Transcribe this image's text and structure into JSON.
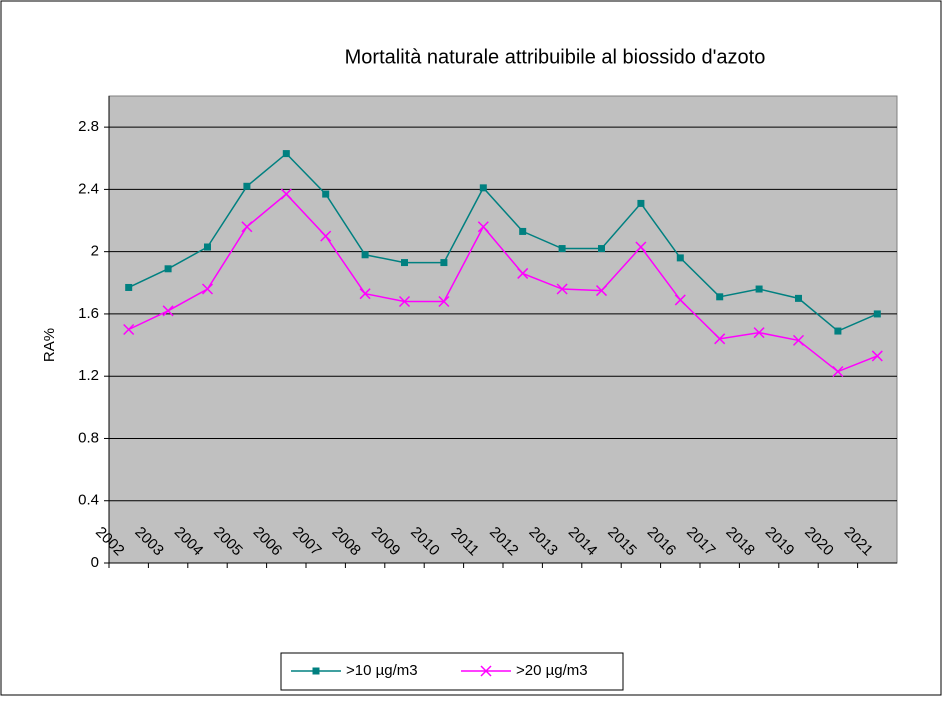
{
  "chart_data": {
    "type": "line",
    "title": "Mortalità naturale attribuibile al biossido d'azoto",
    "y_label": "RA%",
    "categories": [
      "2002",
      "2003",
      "2004",
      "2005",
      "2006",
      "2007",
      "2008",
      "2009",
      "2010",
      "2011",
      "2012",
      "2013",
      "2014",
      "2015",
      "2016",
      "2017",
      "2018",
      "2019",
      "2020",
      "2021"
    ],
    "series": [
      {
        "name": ">10 µg/m3",
        "color": "#008080",
        "marker": "square",
        "values": [
          1.77,
          1.89,
          2.03,
          2.42,
          2.63,
          2.37,
          1.98,
          1.93,
          1.93,
          2.41,
          2.13,
          2.02,
          2.02,
          2.31,
          1.96,
          1.71,
          1.76,
          1.7,
          1.49,
          1.6
        ]
      },
      {
        "name": ">20 µg/m3",
        "color": "#ff00ff",
        "marker": "x",
        "values": [
          1.5,
          1.62,
          1.76,
          2.16,
          2.37,
          2.1,
          1.73,
          1.68,
          1.68,
          2.16,
          1.86,
          1.76,
          1.75,
          2.03,
          1.69,
          1.44,
          1.48,
          1.43,
          1.23,
          1.33
        ]
      }
    ],
    "ylim": [
      0,
      3
    ],
    "yticks": [
      0,
      0.4,
      0.8,
      1.2,
      1.6,
      2,
      2.4,
      2.8
    ],
    "grid": true
  }
}
